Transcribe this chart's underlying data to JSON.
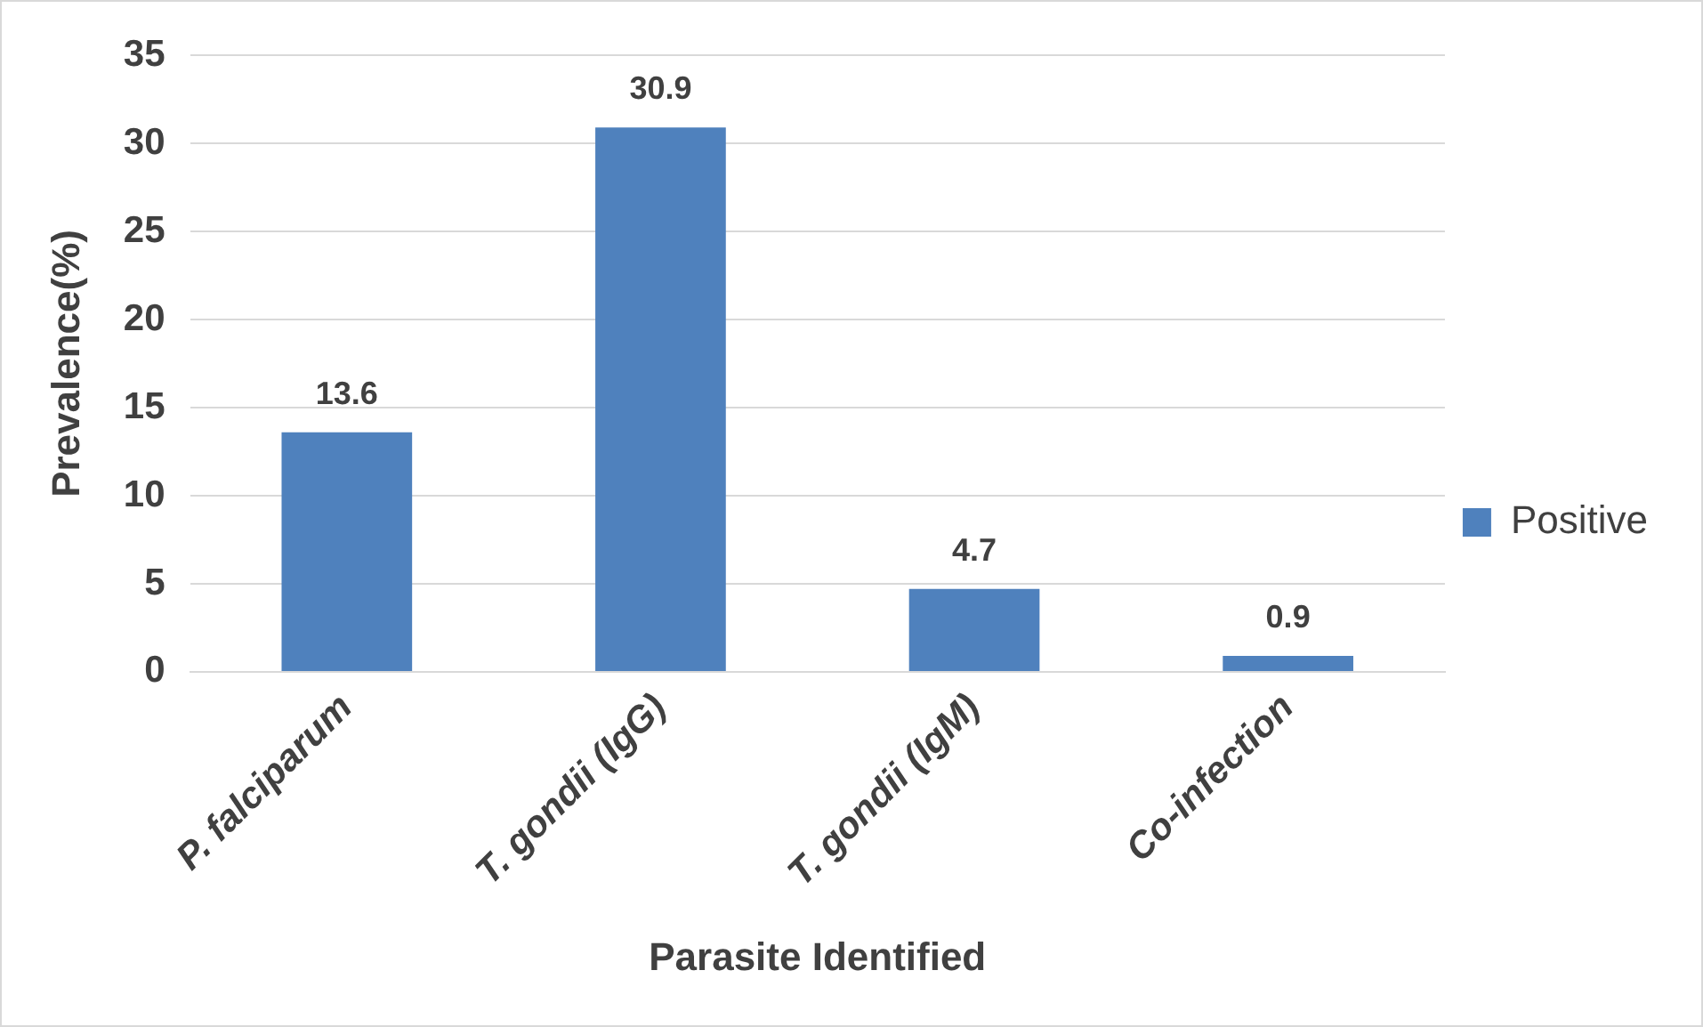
{
  "chart_data": {
    "type": "bar",
    "xlabel": "Parasite Identified",
    "ylabel": "Prevalence(%)",
    "categories": [
      "P. falciparum",
      "T. gondii (IgG)",
      "T. gondii (IgM)",
      "Co-infection"
    ],
    "series": [
      {
        "name": "Positive",
        "color": "#4f81bd",
        "values": [
          13.6,
          30.9,
          4.7,
          0.9
        ]
      }
    ],
    "ylim": [
      0,
      35
    ],
    "yticks": [
      0,
      5,
      10,
      15,
      20,
      25,
      30,
      35
    ],
    "grid": "y",
    "legend": "right",
    "data_labels": true
  }
}
